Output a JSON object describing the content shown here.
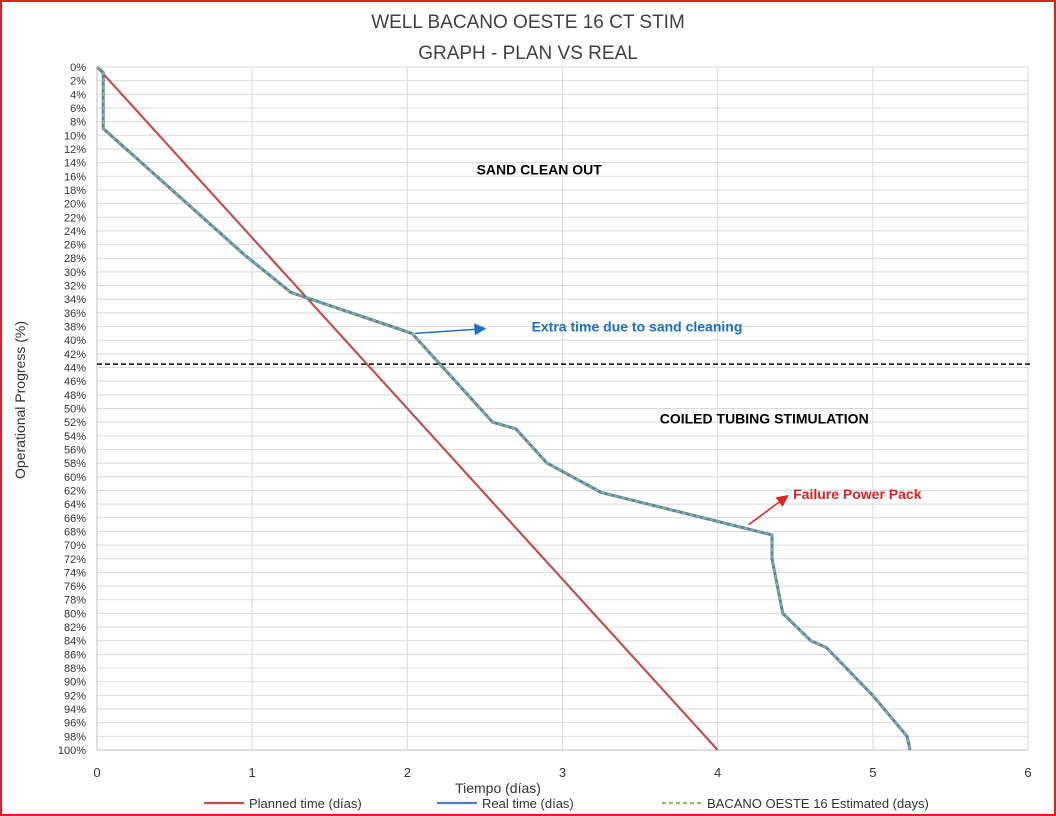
{
  "chart_data": {
    "type": "line",
    "title": "WELL BACANO OESTE 16 CT STIM",
    "subtitle": "GRAPH  - PLAN VS REAL",
    "xlabel": "Tiempo (días)",
    "ylabel": "Operational Progress (%)",
    "xlim": [
      0,
      6
    ],
    "ylim": [
      0,
      100
    ],
    "y_reversed": true,
    "x_ticks": [
      0,
      1,
      2,
      3,
      4,
      5,
      6
    ],
    "y_tick_step": 2,
    "grid": true,
    "legend_position": "bottom",
    "series": [
      {
        "name": "Planned time (días)",
        "color": "#c0504d",
        "style": "solid",
        "points": [
          [
            0,
            0
          ],
          [
            4.0,
            100
          ]
        ]
      },
      {
        "name": "Real time (días)",
        "color": "#4f81bd",
        "style": "solid",
        "points": [
          [
            0,
            0
          ],
          [
            0.04,
            0.8
          ],
          [
            0.04,
            9
          ],
          [
            0.95,
            27.5
          ],
          [
            1.25,
            33
          ],
          [
            2.03,
            39
          ],
          [
            2.55,
            52
          ],
          [
            2.7,
            53
          ],
          [
            2.9,
            58
          ],
          [
            3.25,
            62.3
          ],
          [
            4.35,
            68.5
          ],
          [
            4.35,
            72
          ],
          [
            4.42,
            80
          ],
          [
            4.6,
            84
          ],
          [
            4.7,
            85
          ],
          [
            5.0,
            92
          ],
          [
            5.22,
            98
          ],
          [
            5.24,
            100
          ]
        ]
      },
      {
        "name": "BACANO OESTE 16 Estimated (days)",
        "color": "#9bbb59",
        "style": "dashed",
        "points": [
          [
            0,
            0
          ],
          [
            0.04,
            0.8
          ],
          [
            0.04,
            9
          ],
          [
            0.95,
            27.5
          ],
          [
            1.25,
            33
          ],
          [
            2.03,
            39
          ],
          [
            2.55,
            52
          ],
          [
            2.7,
            53
          ],
          [
            2.9,
            58
          ],
          [
            3.25,
            62.3
          ],
          [
            4.35,
            68.5
          ],
          [
            4.35,
            72
          ],
          [
            4.42,
            80
          ],
          [
            4.6,
            84
          ],
          [
            4.7,
            85
          ],
          [
            5.0,
            92
          ],
          [
            5.22,
            98
          ],
          [
            5.24,
            100
          ]
        ]
      }
    ],
    "reference_line": {
      "y": 43.5,
      "color": "#000000",
      "style": "dashed"
    },
    "annotations": [
      {
        "text": "SAND CLEAN OUT",
        "color": "#000000",
        "x": 2.85,
        "y": 15
      },
      {
        "text": "Extra time due to sand cleaning",
        "color": "#1f6fbf",
        "x": 3.48,
        "y": 38,
        "arrow_from": [
          2.05,
          39
        ],
        "arrow_to": [
          2.5,
          38.3
        ]
      },
      {
        "text": "COILED TUBING STIMULATION",
        "color": "#000000",
        "x": 4.3,
        "y": 51.5
      },
      {
        "text": "Failure Power Pack",
        "color": "#e02020",
        "x": 4.9,
        "y": 62.5,
        "arrow_from": [
          4.2,
          67
        ],
        "arrow_to": [
          4.45,
          62.8
        ]
      }
    ]
  }
}
